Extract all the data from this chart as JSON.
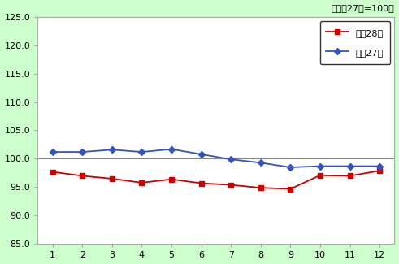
{
  "x": [
    1,
    2,
    3,
    4,
    5,
    6,
    7,
    8,
    9,
    10,
    11,
    12
  ],
  "series_h28": [
    97.7,
    97.0,
    96.5,
    95.8,
    96.4,
    95.7,
    95.4,
    94.9,
    94.7,
    97.1,
    97.0,
    97.9
  ],
  "series_h27": [
    101.2,
    101.2,
    101.6,
    101.2,
    101.7,
    100.8,
    99.9,
    99.3,
    98.5,
    98.7,
    98.7,
    98.7
  ],
  "h28_color": "#cc0000",
  "h27_color": "#3355bb",
  "h28_label": "帮成28年",
  "h27_label": "帮成27年",
  "ylim": [
    85.0,
    125.0
  ],
  "yticks": [
    85.0,
    90.0,
    95.0,
    100.0,
    105.0,
    110.0,
    115.0,
    120.0,
    125.0
  ],
  "annotation": "（帮成27年=100）",
  "bg_outer": "#ccffcc",
  "bg_inner": "#ffffff",
  "hline_y": 100.0,
  "hline_color": "#888888",
  "figsize": [
    4.91,
    3.25
  ],
  "dpi": 100
}
